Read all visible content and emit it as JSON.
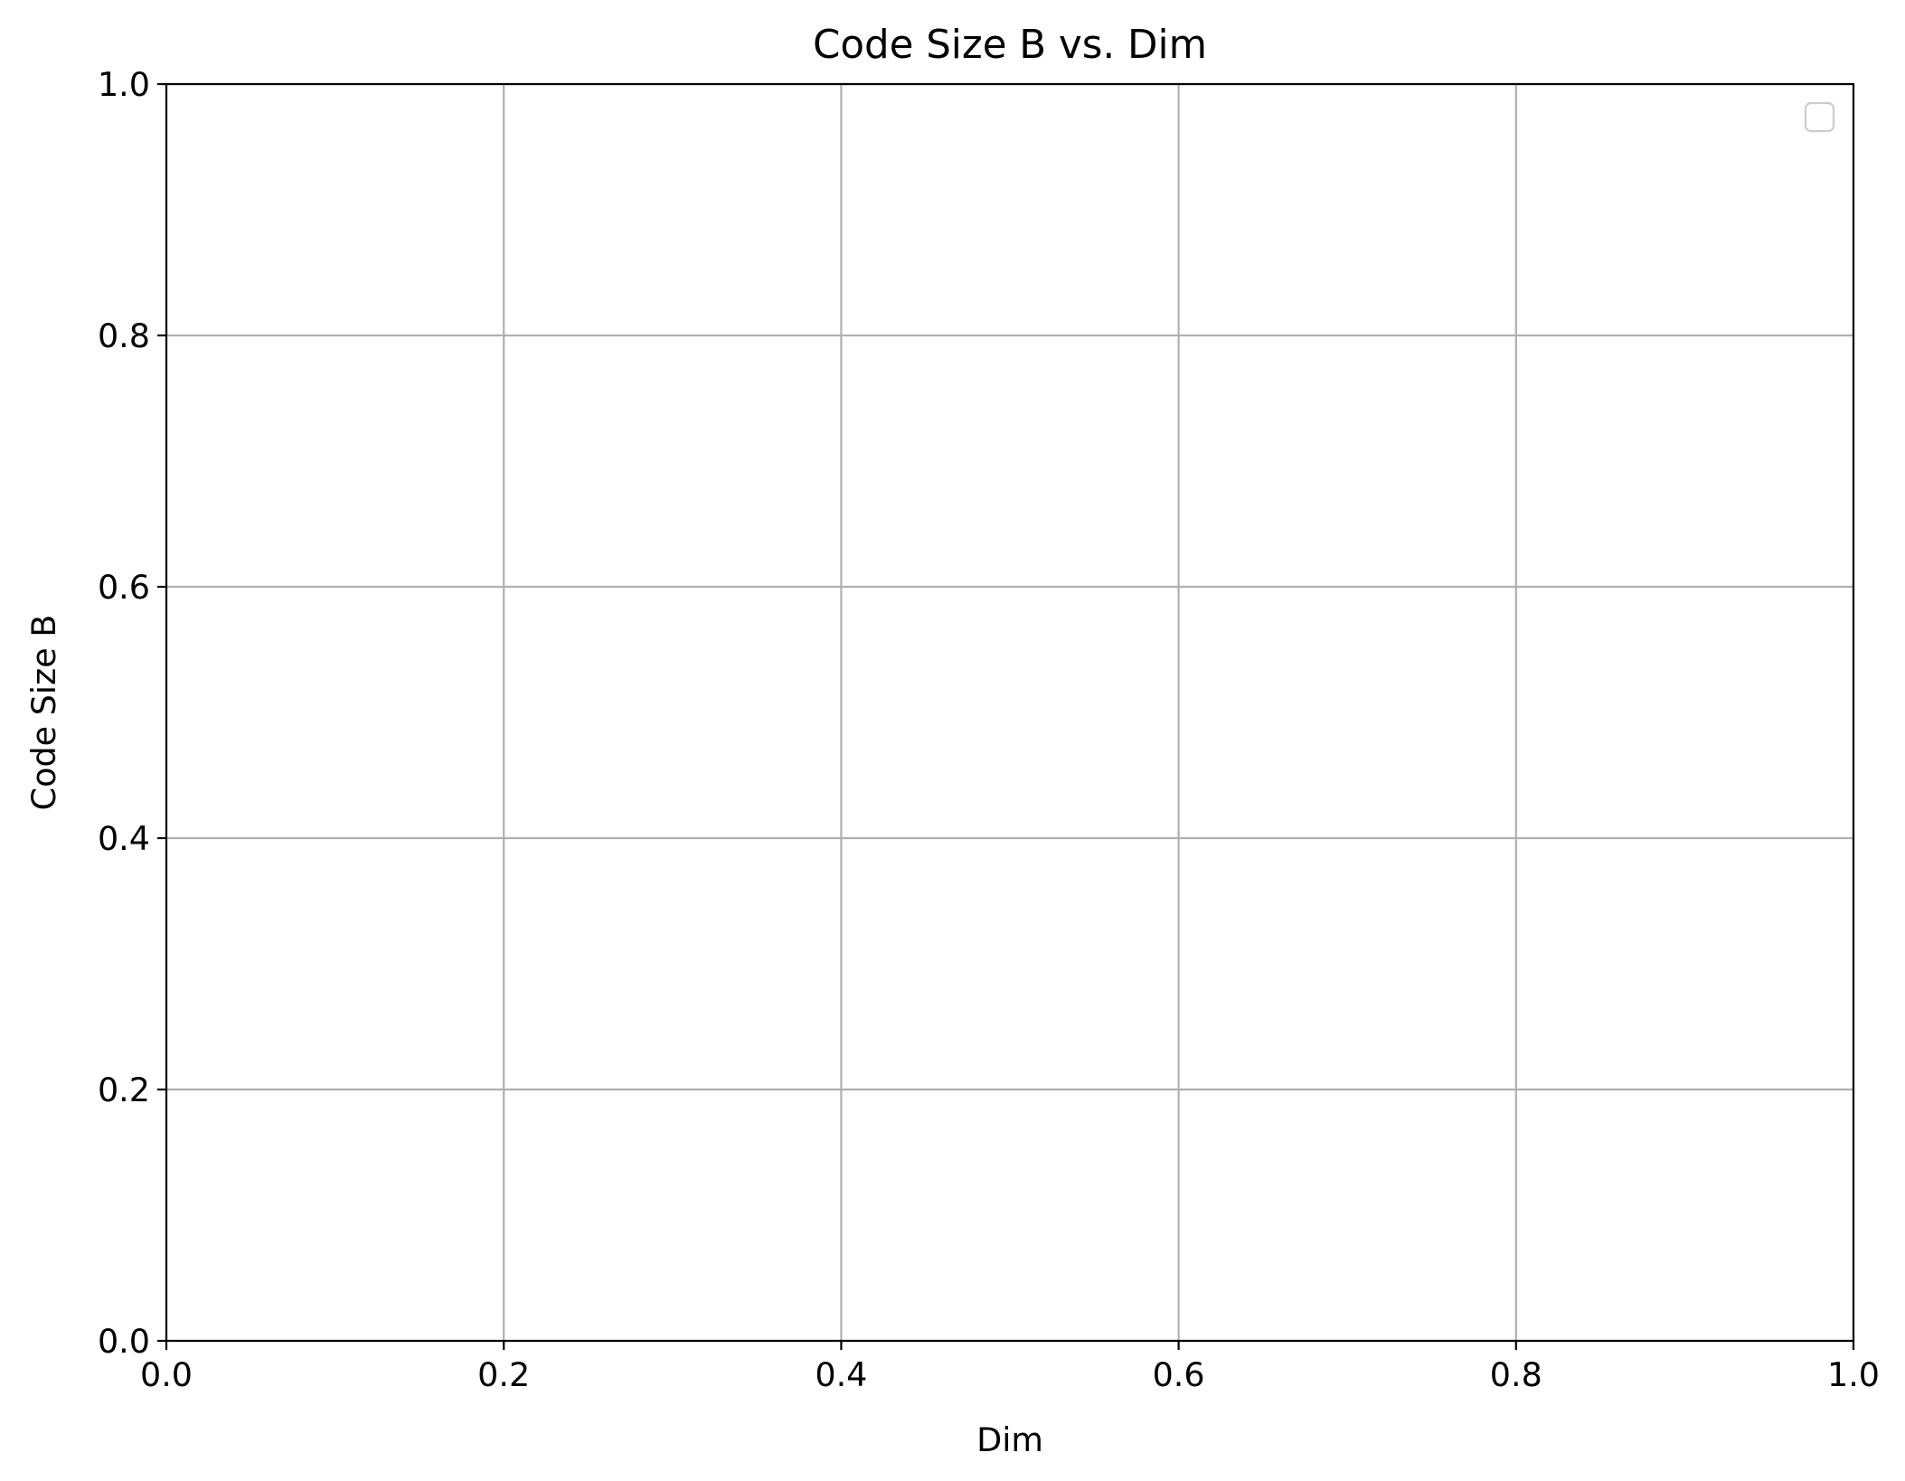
{
  "chart_data": {
    "type": "line",
    "title": "Code Size B vs. Dim",
    "xlabel": "Dim",
    "ylabel": "Code Size B",
    "xlim": [
      0.0,
      1.0
    ],
    "ylim": [
      0.0,
      1.0
    ],
    "xticks": [
      "0.0",
      "0.2",
      "0.4",
      "0.6",
      "0.8",
      "1.0"
    ],
    "yticks": [
      "0.0",
      "0.2",
      "0.4",
      "0.6",
      "0.8",
      "1.0"
    ],
    "series": [],
    "grid": true,
    "legend": {
      "position": "top-right",
      "entries": []
    }
  }
}
